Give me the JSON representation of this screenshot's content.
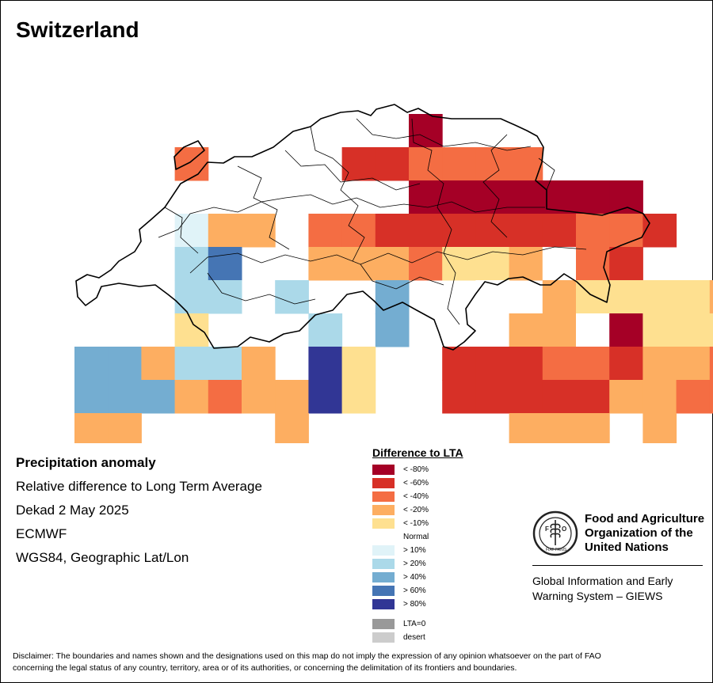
{
  "title": "Switzerland",
  "info": {
    "heading": "Precipitation anomaly",
    "line1": "Relative difference to Long Term Average",
    "line2": "Dekad 2 May 2025",
    "line3": "ECMWF",
    "line4": "WGS84, Geographic Lat/Lon"
  },
  "legend": {
    "title": "Difference to LTA",
    "items": [
      {
        "label": "< -80%",
        "color": "#a50026"
      },
      {
        "label": "< -60%",
        "color": "#d73027"
      },
      {
        "label": "< -40%",
        "color": "#f46d43"
      },
      {
        "label": "< -20%",
        "color": "#fdae61"
      },
      {
        "label": "< -10%",
        "color": "#fee090"
      },
      {
        "label": "Normal",
        "color": "#ffffff"
      },
      {
        "label": "> 10%",
        "color": "#e0f3f8"
      },
      {
        "label": "> 20%",
        "color": "#abd9e9"
      },
      {
        "label": "> 40%",
        "color": "#74add1"
      },
      {
        "label": "> 60%",
        "color": "#4575b4"
      },
      {
        "label": "> 80%",
        "color": "#313695"
      }
    ],
    "extra": [
      {
        "label": "LTA=0",
        "color": "#999999"
      },
      {
        "label": "desert",
        "color": "#cccccc"
      }
    ]
  },
  "fao": {
    "org_line1": "Food and Agriculture",
    "org_line2": "Organization of the",
    "org_line3": "United Nations",
    "giews_line1": "Global Information and Early",
    "giews_line2": "Warning System – GIEWS",
    "seal_text": "FAO",
    "seal_motto": "FIAT PANIS"
  },
  "disclaimer_line1": "Disclaimer: The boundaries and names shown and the designations used on this map do not imply the expression of any opinion whatsoever on the part of FAO",
  "disclaimer_line2": "concerning the legal status of any country, territory, area or of its authorities, or concerning the delimitation of its frontiers and boundaries.",
  "grid": {
    "lon_west": 5.5,
    "lat_north": 48.25,
    "step_deg": 0.25,
    "classes": [
      "#a50026",
      "#d73027",
      "#f46d43",
      "#fdae61",
      "#fee090",
      "#ffffff",
      "#e0f3f8",
      "#abd9e9",
      "#74add1",
      "#4575b4",
      "#313695"
    ],
    "rows": [
      "....................",
      "..........0.........",
      "...2....112222......",
      "..........0000000...",
      "...633.22111111221..",
      "...79..3332443521...",
      "...77.7..8..5.3444433.",
      "...4...7.8..5335044442..",
      "883773.A4..111221332110.",
      "8883233A4..1111133221100",
      "33....3......333.3......"
    ]
  }
}
